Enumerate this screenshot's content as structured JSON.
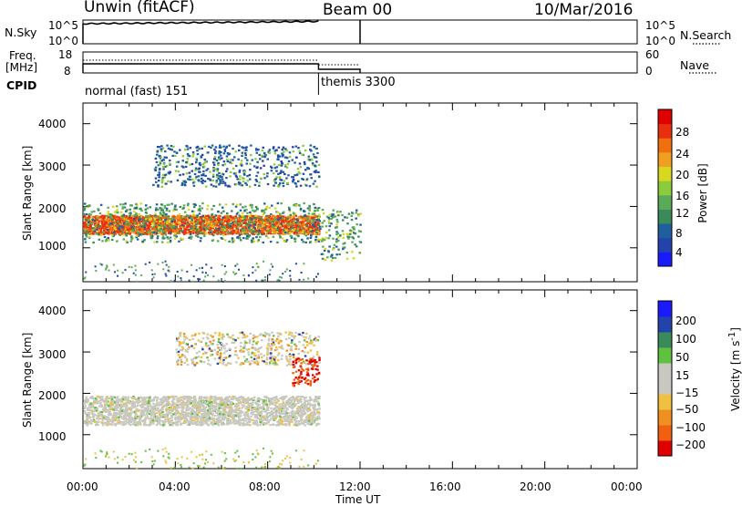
{
  "header": {
    "radar": "Unwin (fitACF)",
    "beam": "Beam 00",
    "date": "10/Mar/2016"
  },
  "panels": {
    "nsky": {
      "label": "N.Sky",
      "ticks": [
        "10^5",
        "10^0"
      ],
      "right_label": "N.Search",
      "right_ticks": [
        "10^5",
        "10^0"
      ]
    },
    "freq": {
      "label_lines": [
        "Freq.",
        "[MHz]"
      ],
      "ticks": [
        "18",
        "8"
      ],
      "right_label": "Nave",
      "right_ticks": [
        "60",
        "0"
      ]
    },
    "cpid": {
      "label": "CPID",
      "modes": [
        "normal (fast) 151",
        "themis 3300"
      ]
    }
  },
  "colors": {
    "power": [
      "#1a1aff",
      "#2244aa",
      "#1f5f9f",
      "#3a8a5a",
      "#5aaa5a",
      "#8ccc3c",
      "#d8d820",
      "#f0a020",
      "#f07010",
      "#e83010",
      "#e00000"
    ],
    "velocity": [
      "#e00000",
      "#f06010",
      "#f09020",
      "#f0c040",
      "#c8c8c0",
      "#c8c8c0",
      "#60c040",
      "#3a8a5a",
      "#2244aa",
      "#1a1aff"
    ]
  },
  "chart_data": [
    {
      "type": "heatmap",
      "title": "",
      "xlabel": "",
      "ylabel": "Slant Range [km]",
      "colorbar_label": "Power [dB]",
      "colorbar_ticks": [
        4,
        8,
        12,
        16,
        20,
        24,
        28
      ],
      "xlim": [
        0,
        24
      ],
      "ylim": [
        180,
        4500
      ],
      "yticks": [
        1000,
        2000,
        3000,
        4000
      ],
      "bands": [
        {
          "t0": 0.0,
          "t1": 10.2,
          "r0": 1350,
          "r1": 1800,
          "level": "high"
        },
        {
          "t0": 0.0,
          "t1": 10.2,
          "r0": 1150,
          "r1": 2100,
          "level": "mid"
        },
        {
          "t0": 3.0,
          "t1": 10.2,
          "r0": 2500,
          "r1": 3500,
          "level": "low"
        },
        {
          "t0": 10.2,
          "t1": 12.0,
          "r0": 700,
          "r1": 1950,
          "level": "mid"
        }
      ]
    },
    {
      "type": "heatmap",
      "title": "",
      "xlabel": "Time UT",
      "ylabel": "Slant Range [km]",
      "colorbar_label": "Velocity [m s^-1]",
      "colorbar_ticks": [
        -200,
        -100,
        -50,
        -15,
        15,
        50,
        100,
        200
      ],
      "xlim": [
        0,
        24
      ],
      "xticks": [
        "00:00",
        "04:00",
        "08:00",
        "12:00",
        "16:00",
        "20:00",
        "00:00"
      ],
      "ylim": [
        180,
        4500
      ],
      "yticks": [
        1000,
        2000,
        3000,
        4000
      ],
      "bands": [
        {
          "t0": 0.0,
          "t1": 10.2,
          "r0": 1250,
          "r1": 1950,
          "level": "ground"
        },
        {
          "t0": 4.0,
          "t1": 10.2,
          "r0": 2700,
          "r1": 3500,
          "level": "mixed"
        },
        {
          "t0": 9.0,
          "t1": 10.2,
          "r0": 2200,
          "r1": 2900,
          "level": "negative"
        }
      ]
    }
  ]
}
